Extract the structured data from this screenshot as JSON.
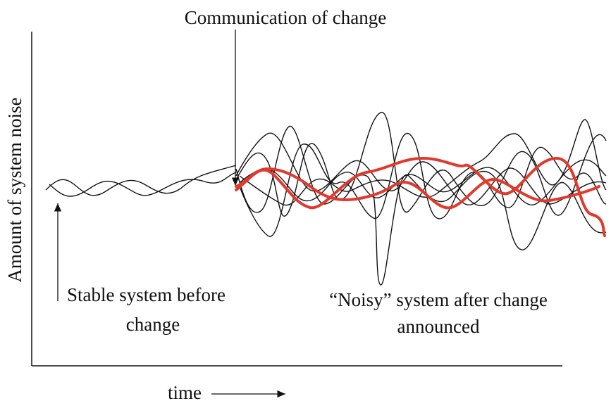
{
  "title": "Communication of change",
  "y_axis_label": "Amount of system noise",
  "x_axis_label": "time",
  "annotations": [
    {
      "lines": [
        "Stable system before",
        "change"
      ]
    },
    {
      "lines": [
        "“Noisy” system after change",
        "announced"
      ]
    }
  ]
}
